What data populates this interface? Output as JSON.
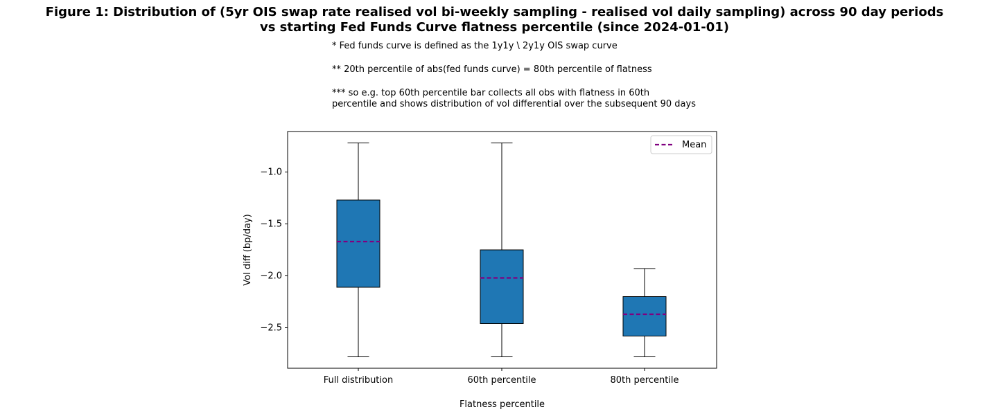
{
  "title_line1": "Figure 1: Distribution of (5yr OIS swap rate realised vol bi-weekly sampling - realised vol daily sampling) across 90 day periods",
  "title_line2": "vs starting Fed Funds Curve flatness percentile (since 2024-01-01)",
  "notes": [
    "* Fed funds curve is defined as the 1y1y \\ 2y1y OIS swap curve",
    "** 20th percentile of abs(fed funds curve) = 80th percentile of flatness",
    "*** so e.g. top 60th percentile bar collects all obs with flatness in 60th\npercentile and shows distribution of vol differential over the subsequent 90 days"
  ],
  "chart_data": {
    "type": "box",
    "xlabel": "Flatness percentile",
    "ylabel": "Vol diff (bp/day)",
    "ylim": [
      -2.89,
      -0.61
    ],
    "yticks": [
      -2.5,
      -2.0,
      -1.5,
      -1.0
    ],
    "ytick_labels": [
      "−2.5",
      "−2.0",
      "−1.5",
      "−1.0"
    ],
    "categories": [
      "Full distribution",
      "60th percentile",
      "80th percentile"
    ],
    "boxes": [
      {
        "whisker_low": -2.78,
        "q1": -2.11,
        "q3": -1.27,
        "whisker_high": -0.72,
        "mean": -1.67
      },
      {
        "whisker_low": -2.78,
        "q1": -2.46,
        "q3": -1.75,
        "whisker_high": -0.72,
        "mean": -2.02
      },
      {
        "whisker_low": -2.78,
        "q1": -2.58,
        "q3": -2.2,
        "whisker_high": -1.93,
        "mean": -2.37
      }
    ],
    "legend": {
      "label": "Mean",
      "position": "upper-right"
    },
    "colors": {
      "box_fill": "#1f77b4",
      "mean_line": "#800080",
      "edge": "#000000"
    }
  }
}
